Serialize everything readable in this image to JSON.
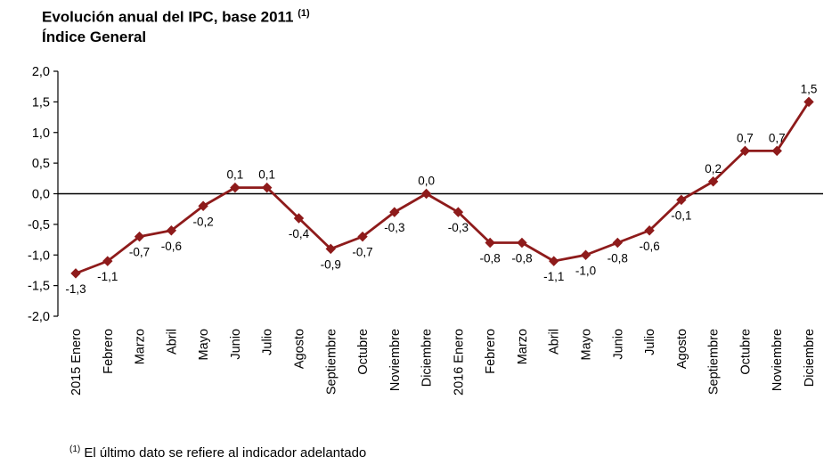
{
  "header": {
    "title": "Evolución anual del IPC, base 2011",
    "title_sup": "(1)",
    "subtitle": "Índice General"
  },
  "footnote": {
    "sup": "(1)",
    "text": "El último dato se refiere al indicador adelantado"
  },
  "chart_data": {
    "type": "line",
    "title": "Evolución anual del IPC, base 2011 (1) — Índice General",
    "categories": [
      "2015 Enero",
      "Febrero",
      "Marzo",
      "Abril",
      "Mayo",
      "Junio",
      "Julio",
      "Agosto",
      "Septiembre",
      "Octubre",
      "Noviembre",
      "Diciembre",
      "2016 Enero",
      "Febrero",
      "Marzo",
      "Abril",
      "Mayo",
      "Junio",
      "Julio",
      "Agosto",
      "Septiembre",
      "Octubre",
      "Noviembre",
      "Diciembre"
    ],
    "values": [
      -1.3,
      -1.1,
      -0.7,
      -0.6,
      -0.2,
      0.1,
      0.1,
      -0.4,
      -0.9,
      -0.7,
      -0.3,
      0.0,
      -0.3,
      -0.8,
      -0.8,
      -1.1,
      -1.0,
      -0.8,
      -0.6,
      -0.1,
      0.2,
      0.7,
      0.7,
      1.5
    ],
    "point_labels": [
      "-1,3",
      "-1,1",
      "-0,7",
      "-0,6",
      "-0,2",
      "0,1",
      "0,1",
      "-0,4",
      "-0,9",
      "-0,7",
      "-0,3",
      "0,0",
      "-0,3",
      "-0,8",
      "-0,8",
      "-1,1",
      "-1,0",
      "-0,8",
      "-0,6",
      "-0,1",
      "0,2",
      "0,7",
      "0,7",
      "1,5"
    ],
    "xlabel": "",
    "ylabel": "",
    "ylim": [
      -2.0,
      2.0
    ],
    "y_ticks": [
      2.0,
      1.5,
      1.0,
      0.5,
      0.0,
      -0.5,
      -1.0,
      -1.5,
      -2.0
    ],
    "y_tick_labels": [
      "2,0",
      "1,5",
      "1,0",
      "0,5",
      "0,0",
      "-0,5",
      "-1,0",
      "-1,5",
      "-2,0"
    ],
    "grid": false,
    "legend": "none",
    "line_color": "#8e1b1b",
    "marker": "diamond",
    "axis_color": "#000000"
  }
}
